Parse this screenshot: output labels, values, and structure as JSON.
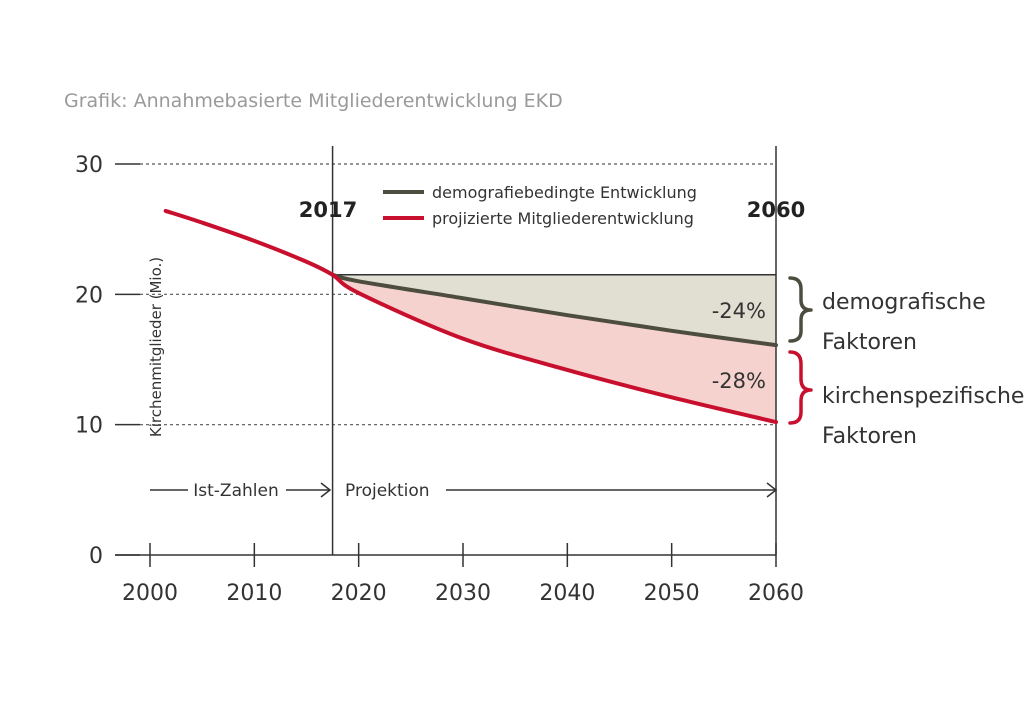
{
  "caption": "Grafik: Annahmebasierte Mitgliederentwicklung EKD",
  "chart_data": {
    "type": "line",
    "ylabel": "Kirchenmitglieder (Mio.)",
    "xlabel": "",
    "xlim": [
      2000,
      2060
    ],
    "ylim": [
      0,
      30
    ],
    "xticks": [
      "2000",
      "2010",
      "2020",
      "2030",
      "2040",
      "2050",
      "2060"
    ],
    "yticks": [
      "0",
      "10",
      "20",
      "30"
    ],
    "grid": "horizontal dashed at 10, 20, 30",
    "legend_position": "top",
    "markers": {
      "start": "2017",
      "end": "2060"
    },
    "series": [
      {
        "name": "demografiebedingte Entwicklung",
        "color": "#4d4d3f",
        "x": [
          2017.5,
          2020,
          2030,
          2040,
          2050,
          2060
        ],
        "y": [
          21.5,
          21.0,
          19.7,
          18.4,
          17.2,
          16.1
        ]
      },
      {
        "name": "projizierte Mitgliederentwicklung",
        "color": "#c8102e",
        "x": [
          2001.5,
          2005,
          2010,
          2015,
          2017.5,
          2020,
          2030,
          2040,
          2050,
          2060
        ],
        "y": [
          26.4,
          25.5,
          24.1,
          22.5,
          21.5,
          20.1,
          16.6,
          14.2,
          12.1,
          10.2
        ]
      }
    ],
    "reference_level": 21.5,
    "annotations": [
      {
        "text": "-24%",
        "bracket_label": [
          "demografische",
          "Faktoren"
        ],
        "bracket_color": "#4d4d3f"
      },
      {
        "text": "-28%",
        "bracket_label": [
          "kirchenspezifische",
          "Faktoren"
        ],
        "bracket_color": "#c8102e"
      }
    ],
    "phases": [
      {
        "label": "Ist-Zahlen"
      },
      {
        "label": "Projektion"
      }
    ]
  }
}
